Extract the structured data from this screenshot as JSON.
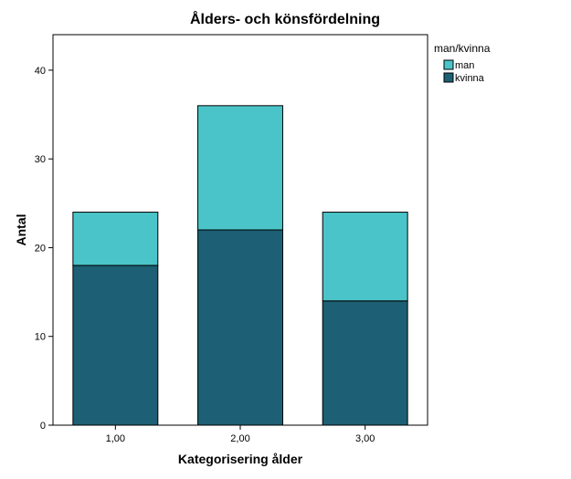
{
  "chart_data": {
    "type": "bar",
    "stacked": true,
    "title": "Ålders- och könsfördelning",
    "xlabel": "Kategorisering ålder",
    "ylabel": "Antal",
    "categories": [
      "1,00",
      "2,00",
      "3,00"
    ],
    "series": [
      {
        "name": "kvinna",
        "values": [
          18,
          22,
          14
        ],
        "color": "#1d5f74"
      },
      {
        "name": "man",
        "values": [
          6,
          14,
          10
        ],
        "color": "#4ac4c8"
      }
    ],
    "ylim": [
      0,
      44
    ],
    "yticks": [
      0,
      10,
      20,
      30,
      40
    ],
    "legend_title": "man/kvinna",
    "legend_order": [
      "man",
      "kvinna"
    ],
    "legend_position": "right",
    "grid": false
  }
}
